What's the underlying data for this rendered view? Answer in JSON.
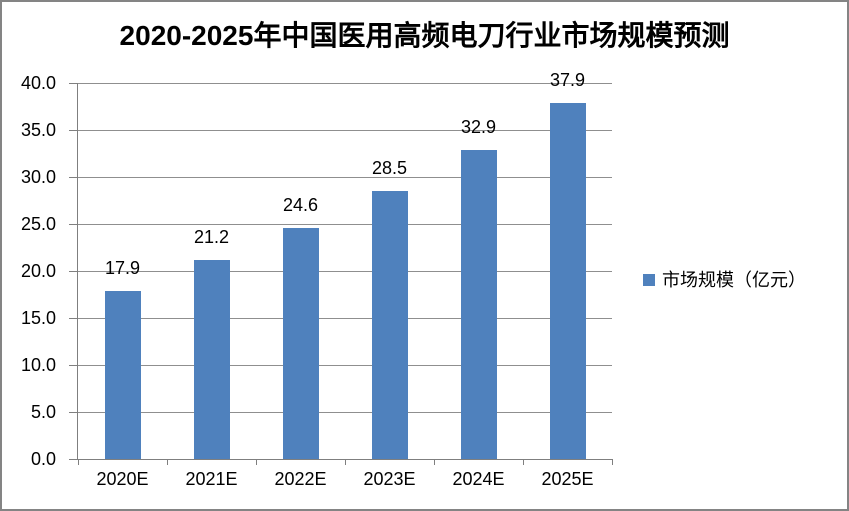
{
  "window": {
    "background": "#ffffff",
    "border_color": "#848484"
  },
  "chart_data": {
    "type": "bar",
    "title": "2020-2025年中国医用高频电刀行业市场规模预测",
    "categories": [
      "2020E",
      "2021E",
      "2022E",
      "2023E",
      "2024E",
      "2025E"
    ],
    "values": [
      17.9,
      21.2,
      24.6,
      28.5,
      32.9,
      37.9
    ],
    "data_labels": [
      "17.9",
      "21.2",
      "24.6",
      "28.5",
      "32.9",
      "37.9"
    ],
    "series": [
      {
        "name": "市场规模（亿元）",
        "values": [
          17.9,
          21.2,
          24.6,
          28.5,
          32.9,
          37.9
        ]
      }
    ],
    "xlabel": "",
    "ylabel": "",
    "ylim": [
      0,
      40
    ],
    "ytick_step": 5,
    "y_ticks": [
      "0.0",
      "5.0",
      "10.0",
      "15.0",
      "20.0",
      "25.0",
      "30.0",
      "35.0",
      "40.0"
    ],
    "grid": true,
    "legend": {
      "label": "市场规模（亿元）",
      "position": "right"
    },
    "colors": {
      "bar": "#4f81bd",
      "gridline": "#8f8f8f",
      "axis": "#7f7f7f",
      "text": "#000000"
    }
  }
}
